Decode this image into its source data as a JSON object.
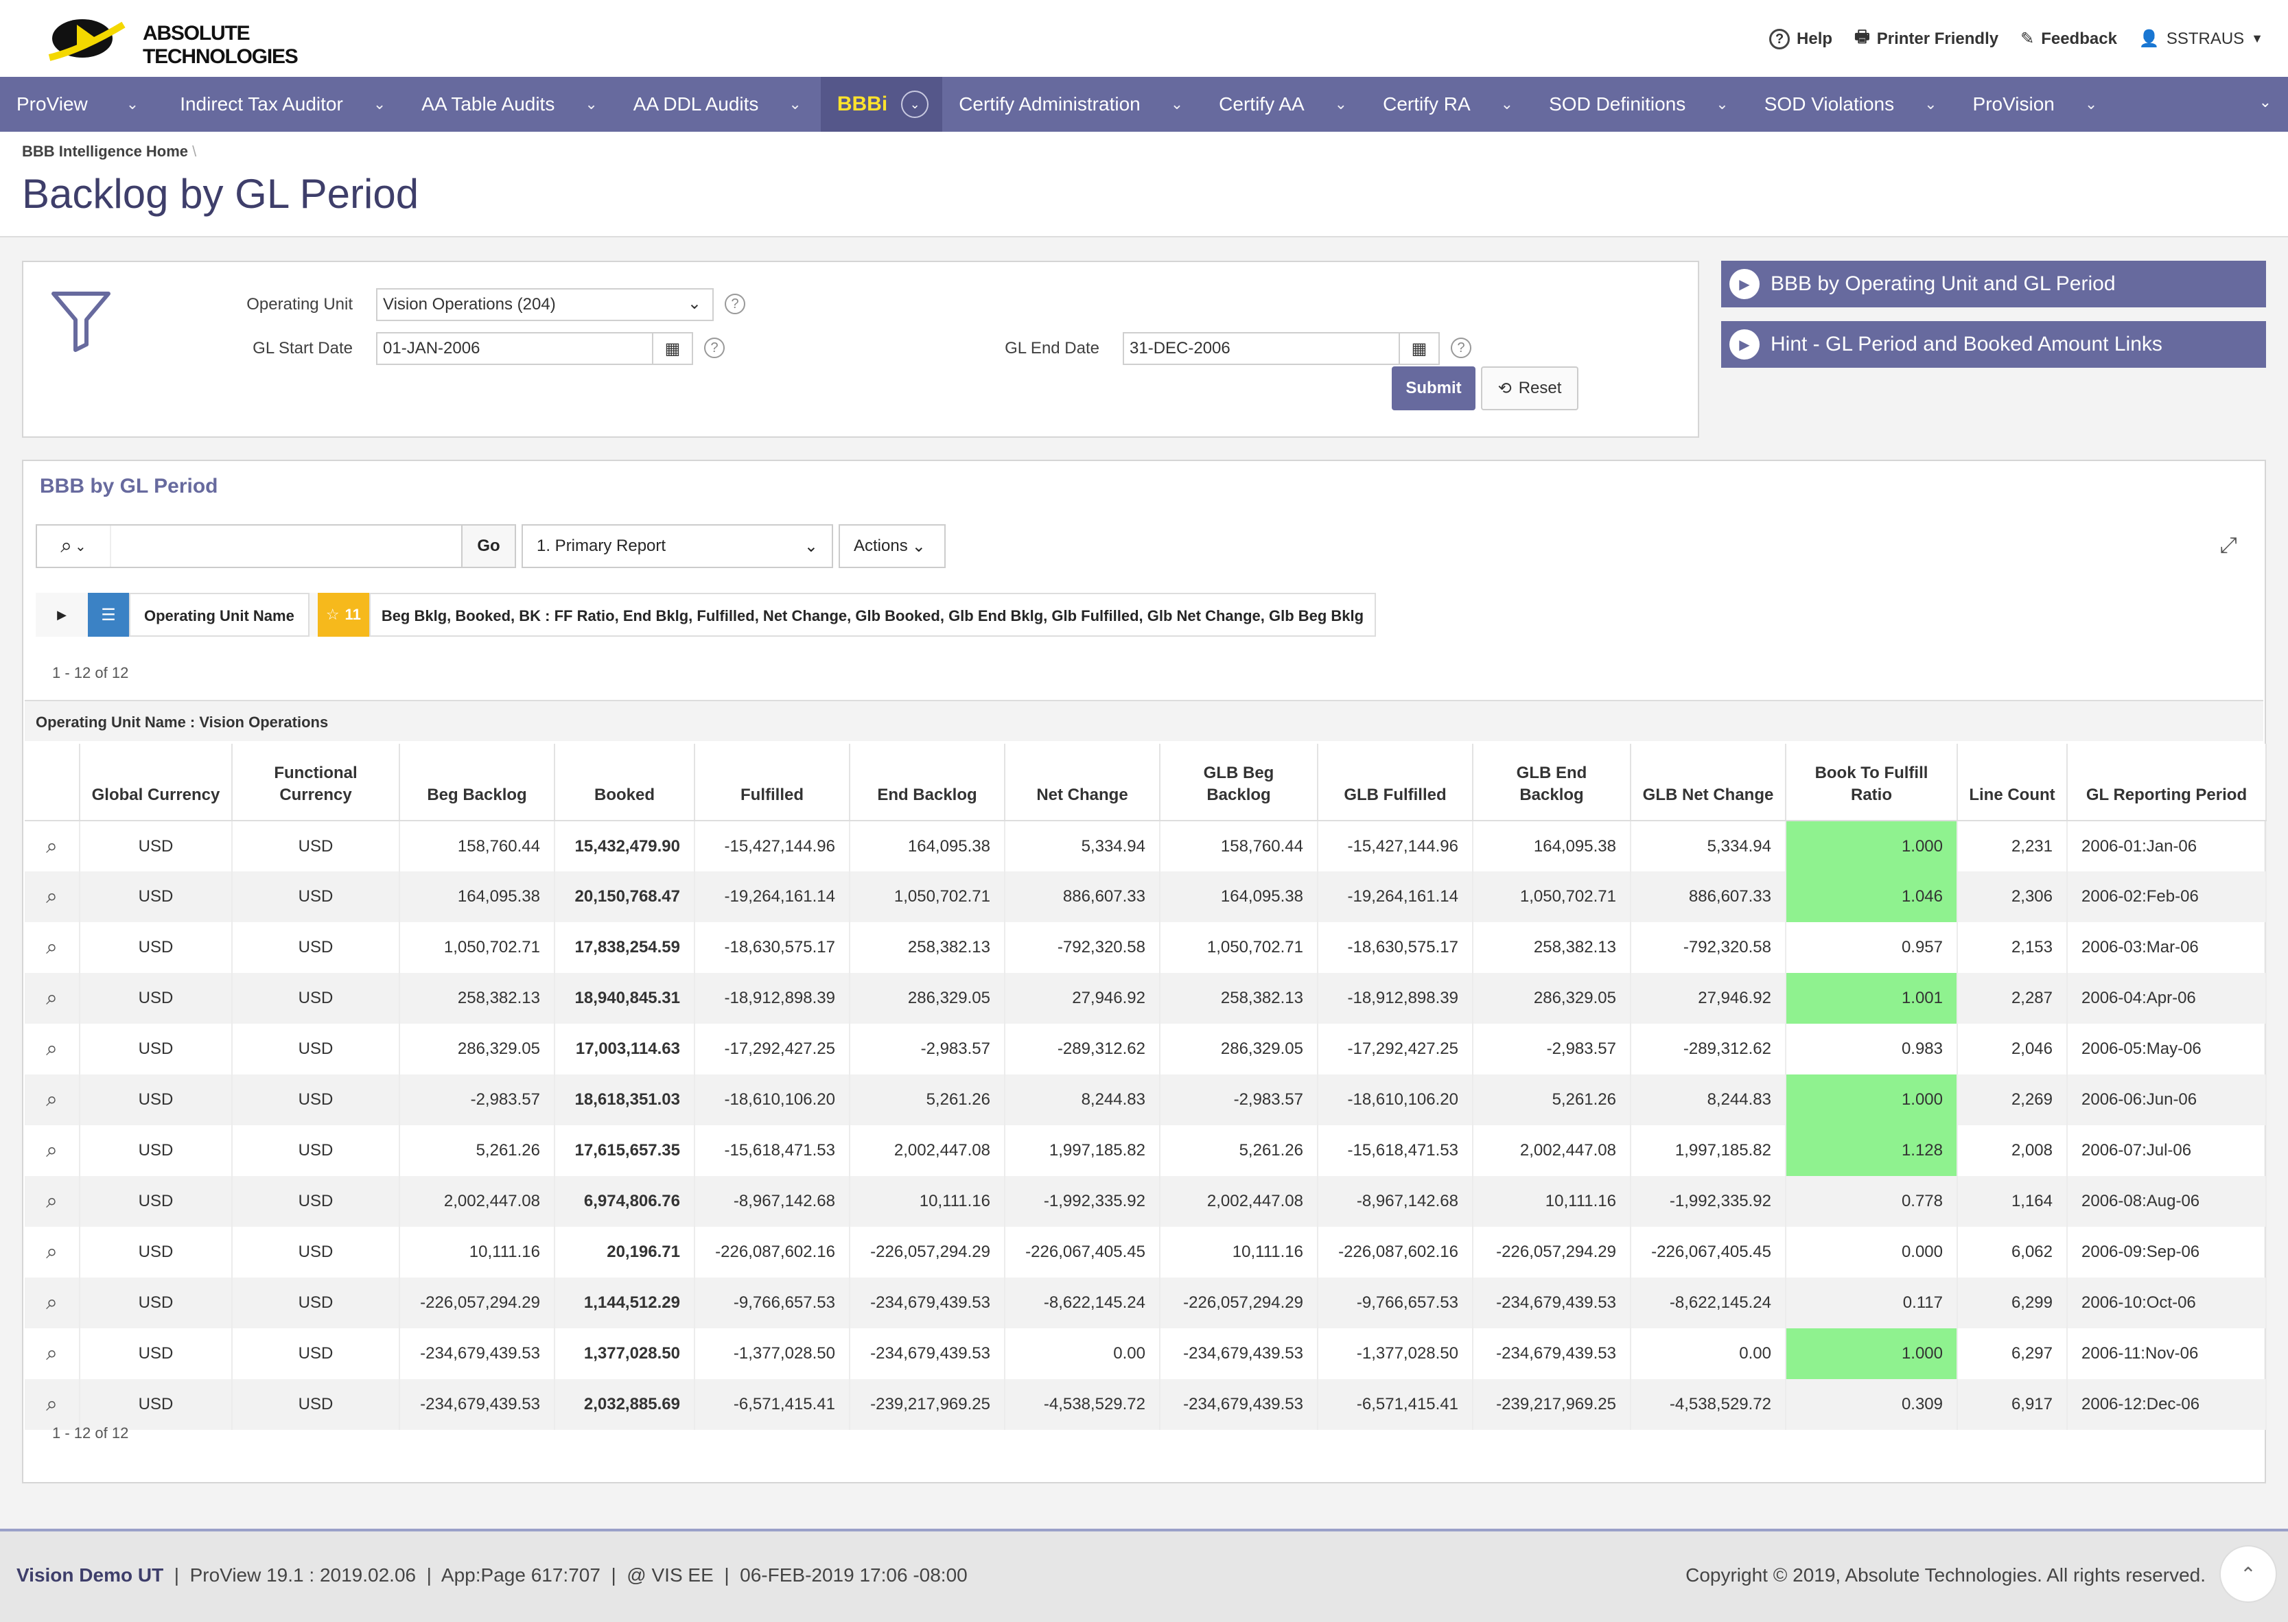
{
  "header": {
    "logo_line1": "ABSOLUTE",
    "logo_line2": "TECHNOLOGIES",
    "help": "Help",
    "printer": "Printer Friendly",
    "feedback": "Feedback",
    "user": "SSTRAUS"
  },
  "nav": [
    "ProView",
    "Indirect Tax Auditor",
    "AA Table Audits",
    "AA DDL Audits",
    "BBBi",
    "Certify Administration",
    "Certify AA",
    "Certify RA",
    "SOD Definitions",
    "SOD Violations",
    "ProVision"
  ],
  "breadcrumb": "BBB Intelligence Home",
  "page_title": "Backlog by GL Period",
  "filters": {
    "ou_label": "Operating Unit",
    "ou_value": "Vision Operations (204)",
    "start_label": "GL Start Date",
    "start_value": "01-JAN-2006",
    "end_label": "GL End Date",
    "end_value": "31-DEC-2006",
    "submit": "Submit",
    "reset": "Reset"
  },
  "side_links": [
    "BBB by Operating Unit and GL Period",
    "Hint - GL Period and Booked Amount Links"
  ],
  "report": {
    "title": "BBB by GL Period",
    "go": "Go",
    "report_select": "1. Primary Report",
    "actions": "Actions",
    "chip_group": "Operating Unit Name",
    "chip_star_count": "11",
    "chip_columns": "Beg Bklg, Booked, BK : FF Ratio, End Bklg, Fulfilled, Net Change, Glb Booked, Glb End Bklg, Glb Fulfilled, Glb Net Change, Glb Beg Bklg",
    "count_text": "1 - 12 of 12",
    "group_label": "Operating Unit Name : Vision Operations",
    "columns": [
      "Global Currency",
      "Functional Currency",
      "Beg Backlog",
      "Booked",
      "Fulfilled",
      "End Backlog",
      "Net Change",
      "GLB Beg Backlog",
      "GLB Fulfilled",
      "GLB End Backlog",
      "GLB Net Change",
      "Book To Fulfill Ratio",
      "Line Count",
      "GL Reporting Period"
    ],
    "rows": [
      [
        "USD",
        "USD",
        "158,760.44",
        "15,432,479.90",
        "-15,427,144.96",
        "164,095.38",
        "5,334.94",
        "158,760.44",
        "-15,427,144.96",
        "164,095.38",
        "5,334.94",
        "1.000",
        "2,231",
        "2006-01:Jan-06"
      ],
      [
        "USD",
        "USD",
        "164,095.38",
        "20,150,768.47",
        "-19,264,161.14",
        "1,050,702.71",
        "886,607.33",
        "164,095.38",
        "-19,264,161.14",
        "1,050,702.71",
        "886,607.33",
        "1.046",
        "2,306",
        "2006-02:Feb-06"
      ],
      [
        "USD",
        "USD",
        "1,050,702.71",
        "17,838,254.59",
        "-18,630,575.17",
        "258,382.13",
        "-792,320.58",
        "1,050,702.71",
        "-18,630,575.17",
        "258,382.13",
        "-792,320.58",
        "0.957",
        "2,153",
        "2006-03:Mar-06"
      ],
      [
        "USD",
        "USD",
        "258,382.13",
        "18,940,845.31",
        "-18,912,898.39",
        "286,329.05",
        "27,946.92",
        "258,382.13",
        "-18,912,898.39",
        "286,329.05",
        "27,946.92",
        "1.001",
        "2,287",
        "2006-04:Apr-06"
      ],
      [
        "USD",
        "USD",
        "286,329.05",
        "17,003,114.63",
        "-17,292,427.25",
        "-2,983.57",
        "-289,312.62",
        "286,329.05",
        "-17,292,427.25",
        "-2,983.57",
        "-289,312.62",
        "0.983",
        "2,046",
        "2006-05:May-06"
      ],
      [
        "USD",
        "USD",
        "-2,983.57",
        "18,618,351.03",
        "-18,610,106.20",
        "5,261.26",
        "8,244.83",
        "-2,983.57",
        "-18,610,106.20",
        "5,261.26",
        "8,244.83",
        "1.000",
        "2,269",
        "2006-06:Jun-06"
      ],
      [
        "USD",
        "USD",
        "5,261.26",
        "17,615,657.35",
        "-15,618,471.53",
        "2,002,447.08",
        "1,997,185.82",
        "5,261.26",
        "-15,618,471.53",
        "2,002,447.08",
        "1,997,185.82",
        "1.128",
        "2,008",
        "2006-07:Jul-06"
      ],
      [
        "USD",
        "USD",
        "2,002,447.08",
        "6,974,806.76",
        "-8,967,142.68",
        "10,111.16",
        "-1,992,335.92",
        "2,002,447.08",
        "-8,967,142.68",
        "10,111.16",
        "-1,992,335.92",
        "0.778",
        "1,164",
        "2006-08:Aug-06"
      ],
      [
        "USD",
        "USD",
        "10,111.16",
        "20,196.71",
        "-226,087,602.16",
        "-226,057,294.29",
        "-226,067,405.45",
        "10,111.16",
        "-226,087,602.16",
        "-226,057,294.29",
        "-226,067,405.45",
        "0.000",
        "6,062",
        "2006-09:Sep-06"
      ],
      [
        "USD",
        "USD",
        "-226,057,294.29",
        "1,144,512.29",
        "-9,766,657.53",
        "-234,679,439.53",
        "-8,622,145.24",
        "-226,057,294.29",
        "-9,766,657.53",
        "-234,679,439.53",
        "-8,622,145.24",
        "0.117",
        "6,299",
        "2006-10:Oct-06"
      ],
      [
        "USD",
        "USD",
        "-234,679,439.53",
        "1,377,028.50",
        "-1,377,028.50",
        "-234,679,439.53",
        "0.00",
        "-234,679,439.53",
        "-1,377,028.50",
        "-234,679,439.53",
        "0.00",
        "1.000",
        "6,297",
        "2006-11:Nov-06"
      ],
      [
        "USD",
        "USD",
        "-234,679,439.53",
        "2,032,885.69",
        "-6,571,415.41",
        "-239,217,969.25",
        "-4,538,529.72",
        "-234,679,439.53",
        "-6,571,415.41",
        "-239,217,969.25",
        "-4,538,529.72",
        "0.309",
        "6,917",
        "2006-12:Dec-06"
      ]
    ],
    "highlight_rows": [
      0,
      1,
      3,
      5,
      6,
      10
    ],
    "highlight_color": "#8ff28f"
  },
  "footer": {
    "left": "Vision Demo UT  |  ProView 19.1 : 2019.02.06  |  App:Page 617:707  |  @ VIS EE  |  06-FEB-2019 17:06 -08:00",
    "left_bold": "Vision Demo UT",
    "left_rest": "  |  ProView 19.1 : 2019.02.06  |  App:Page 617:707  |  @ VIS EE  |  06-FEB-2019 17:06 -08:00",
    "right": "Copyright © 2019, Absolute Technologies. All rights reserved."
  },
  "colors": {
    "nav": "#676a9e",
    "accent": "#ffe32c",
    "negative": "#e8211e"
  }
}
